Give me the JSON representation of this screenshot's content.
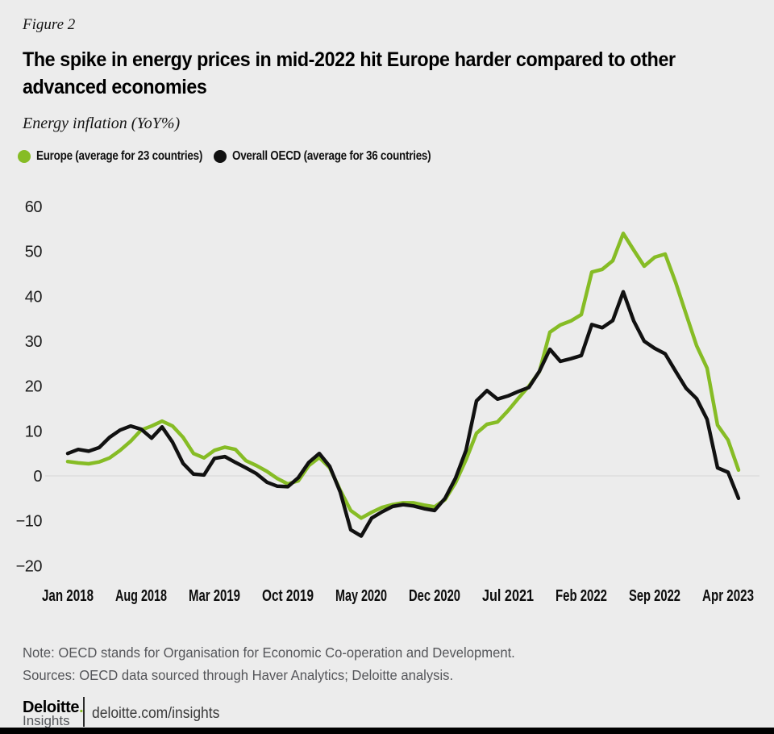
{
  "figure_label": "Figure 2",
  "header": {
    "title": "The spike in energy prices in mid-2022 hit Europe harder compared to other advanced economies",
    "title_lines": [
      "The spike in energy prices in mid-2022 hit Europe harder compared to other",
      "advanced economies"
    ],
    "subtitle": "Energy inflation (YoY%)"
  },
  "legend": {
    "items": [
      {
        "label": "Europe (average for 23 countries)",
        "color": "#86BC25"
      },
      {
        "label": "Overall OECD (average for 36 countries)",
        "color": "#111111"
      }
    ]
  },
  "chart_data": {
    "type": "line",
    "title": "The spike in energy prices in mid-2022 hit Europe harder compared to other advanced economies",
    "ylabel": "Energy inflation (YoY%)",
    "xlabel": "",
    "ylim": [
      -20,
      60
    ],
    "grid": "horizontal zero line only",
    "legend_position": "top-left above plot",
    "zero_line_color": "#d6d6d6",
    "x": [
      "Jan 2018",
      "Feb 2018",
      "Mar 2018",
      "Apr 2018",
      "May 2018",
      "Jun 2018",
      "Jul 2018",
      "Aug 2018",
      "Sep 2018",
      "Oct 2018",
      "Nov 2018",
      "Dec 2018",
      "Jan 2019",
      "Feb 2019",
      "Mar 2019",
      "Apr 2019",
      "May 2019",
      "Jun 2019",
      "Jul 2019",
      "Aug 2019",
      "Sep 2019",
      "Oct 2019",
      "Nov 2019",
      "Dec 2019",
      "Jan 2020",
      "Feb 2020",
      "Mar 2020",
      "Apr 2020",
      "May 2020",
      "Jun 2020",
      "Jul 2020",
      "Aug 2020",
      "Sep 2020",
      "Oct 2020",
      "Nov 2020",
      "Dec 2020",
      "Jan 2021",
      "Feb 2021",
      "Mar 2021",
      "Apr 2021",
      "May 2021",
      "Jun 2021",
      "Jul 2021",
      "Aug 2021",
      "Sep 2021",
      "Oct 2021",
      "Nov 2021",
      "Dec 2021",
      "Jan 2022",
      "Feb 2022",
      "Mar 2022",
      "Apr 2022",
      "May 2022",
      "Jun 2022",
      "Jul 2022",
      "Aug 2022",
      "Sep 2022",
      "Oct 2022",
      "Nov 2022",
      "Dec 2022",
      "Jan 2023",
      "Feb 2023",
      "Mar 2023",
      "Apr 2023",
      "May 2023"
    ],
    "x_tick_labels": [
      "Jan 2018",
      "Aug 2018",
      "Mar 2019",
      "Oct 2019",
      "May 2020",
      "Dec 2020",
      "Jul 2021",
      "Feb 2022",
      "Sep 2022",
      "Apr 2023"
    ],
    "x_tick_indices": [
      0,
      7,
      14,
      21,
      28,
      35,
      42,
      49,
      56,
      63
    ],
    "y_ticks": [
      {
        "label": "60",
        "value": 60
      },
      {
        "label": "50",
        "value": 50
      },
      {
        "label": "40",
        "value": 40
      },
      {
        "label": "30",
        "value": 30
      },
      {
        "label": "20",
        "value": 20
      },
      {
        "label": "10",
        "value": 10
      },
      {
        "label": "0",
        "value": 0
      },
      {
        "label": "−10",
        "value": -10
      },
      {
        "label": "−20",
        "value": -20
      }
    ],
    "series": [
      {
        "name": "Europe (average for 23 countries)",
        "color": "#86BC25",
        "data_name": "europe-line",
        "values": [
          3.2,
          2.9,
          2.7,
          3.1,
          4.0,
          5.7,
          7.7,
          10.2,
          11.1,
          12.2,
          11.1,
          8.6,
          5.0,
          4.0,
          5.7,
          6.4,
          5.9,
          3.4,
          2.3,
          1.0,
          -0.6,
          -1.8,
          -1.1,
          2.3,
          4.1,
          1.8,
          -3.2,
          -7.7,
          -9.4,
          -8.1,
          -7.0,
          -6.4,
          -6.0,
          -6.0,
          -6.5,
          -6.9,
          -5.3,
          -1.5,
          3.6,
          9.5,
          11.5,
          12.0,
          14.5,
          17.3,
          20.0,
          23.2,
          32.0,
          33.6,
          34.5,
          35.9,
          45.4,
          46.0,
          47.9,
          54.0,
          50.3,
          46.7,
          48.7,
          49.4,
          43.1,
          36.0,
          29.0,
          24.0,
          11.3,
          8.0,
          1.3
        ]
      },
      {
        "name": "Overall OECD (average for 36 countries)",
        "color": "#111111",
        "data_name": "oecd-line",
        "values": [
          5.0,
          5.9,
          5.5,
          6.3,
          8.6,
          10.2,
          11.1,
          10.4,
          8.4,
          10.9,
          7.5,
          2.8,
          0.4,
          0.2,
          3.9,
          4.3,
          3.0,
          1.8,
          0.5,
          -1.4,
          -2.3,
          -2.4,
          -0.4,
          3.0,
          5.0,
          2.1,
          -3.6,
          -12.0,
          -13.4,
          -9.4,
          -8.0,
          -6.8,
          -6.4,
          -6.7,
          -7.3,
          -7.7,
          -5.0,
          -0.5,
          5.7,
          16.7,
          19.0,
          17.1,
          17.8,
          18.8,
          19.7,
          23.3,
          28.2,
          25.5,
          26.1,
          26.8,
          33.7,
          33.0,
          34.6,
          41.0,
          34.5,
          30.0,
          28.4,
          27.2,
          23.3,
          19.5,
          17.2,
          12.6,
          1.8,
          0.8,
          -5.0
        ]
      }
    ]
  },
  "footer": {
    "note": "Note: OECD stands for Organisation for Economic Co-operation and Development.",
    "sources": "Sources: OECD data sourced through Haver Analytics; Deloitte analysis.",
    "brand": {
      "name": "Deloitte",
      "period": ".",
      "sub": "Insights",
      "period_color": "#86BC25"
    },
    "url": "deloitte.com/insights"
  },
  "colors": {
    "background": "#ececec",
    "zero_line": "#d6d6d6",
    "text_primary": "#000000",
    "text_secondary": "#55565a",
    "europe_green": "#86BC25",
    "oecd_black": "#111111",
    "bottom_bar": "#000000"
  }
}
